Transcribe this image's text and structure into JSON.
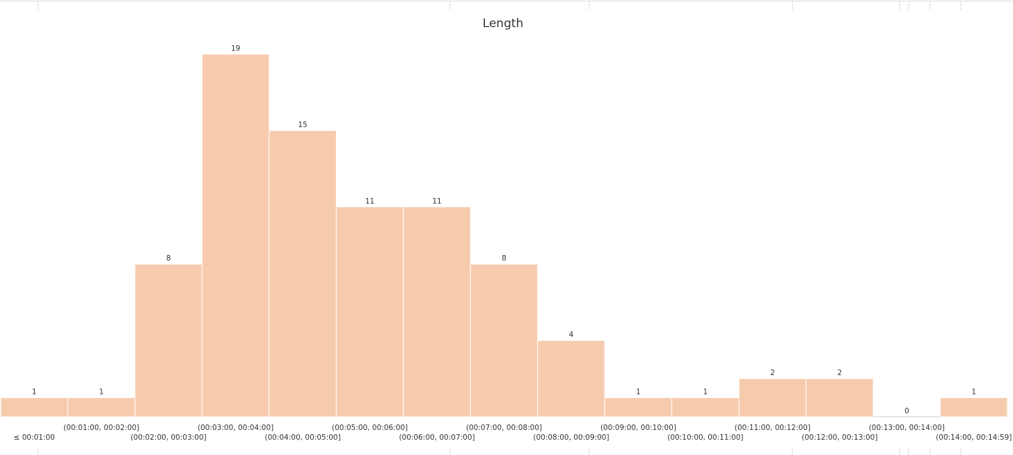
{
  "chart_data": {
    "type": "bar",
    "title": "Length",
    "categories": [
      "≤ 00:01:00",
      "(00:01:00, 00:02:00]",
      "(00:02:00, 00:03:00]",
      "(00:03:00, 00:04:00]",
      "(00:04:00, 00:05:00]",
      "(00:05:00, 00:06:00]",
      "(00:06:00, 00:07:00]",
      "(00:07:00, 00:08:00]",
      "(00:08:00, 00:09:00]",
      "(00:09:00, 00:10:00]",
      "(00:10:00, 00:11:00]",
      "(00:11:00, 00:12:00]",
      "(00:12:00, 00:13:00]",
      "(00:13:00, 00:14:00]",
      "(00:14:00, 00:14:59]"
    ],
    "values": [
      1,
      1,
      8,
      19,
      15,
      11,
      11,
      8,
      4,
      1,
      1,
      2,
      2,
      0,
      1
    ],
    "color": "#f6cbad"
  }
}
